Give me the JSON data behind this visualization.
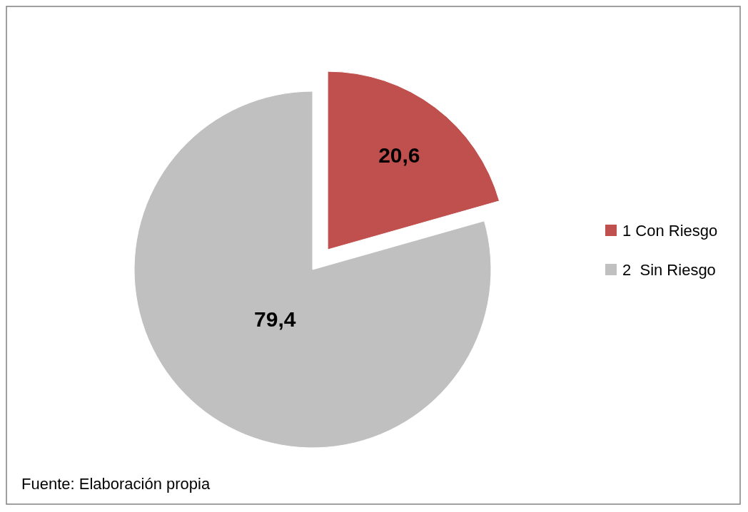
{
  "chart_data": {
    "type": "pie",
    "categories": [
      "1 Con Riesgo",
      "2  Sin Riesgo"
    ],
    "values": [
      20.6,
      79.4
    ],
    "colors": [
      "#c0504d",
      "#c0c0c0"
    ],
    "value_labels": [
      "20,6",
      "79,4"
    ],
    "legend": "right",
    "annotations": [
      "Fuente: Elaboración propia"
    ]
  }
}
